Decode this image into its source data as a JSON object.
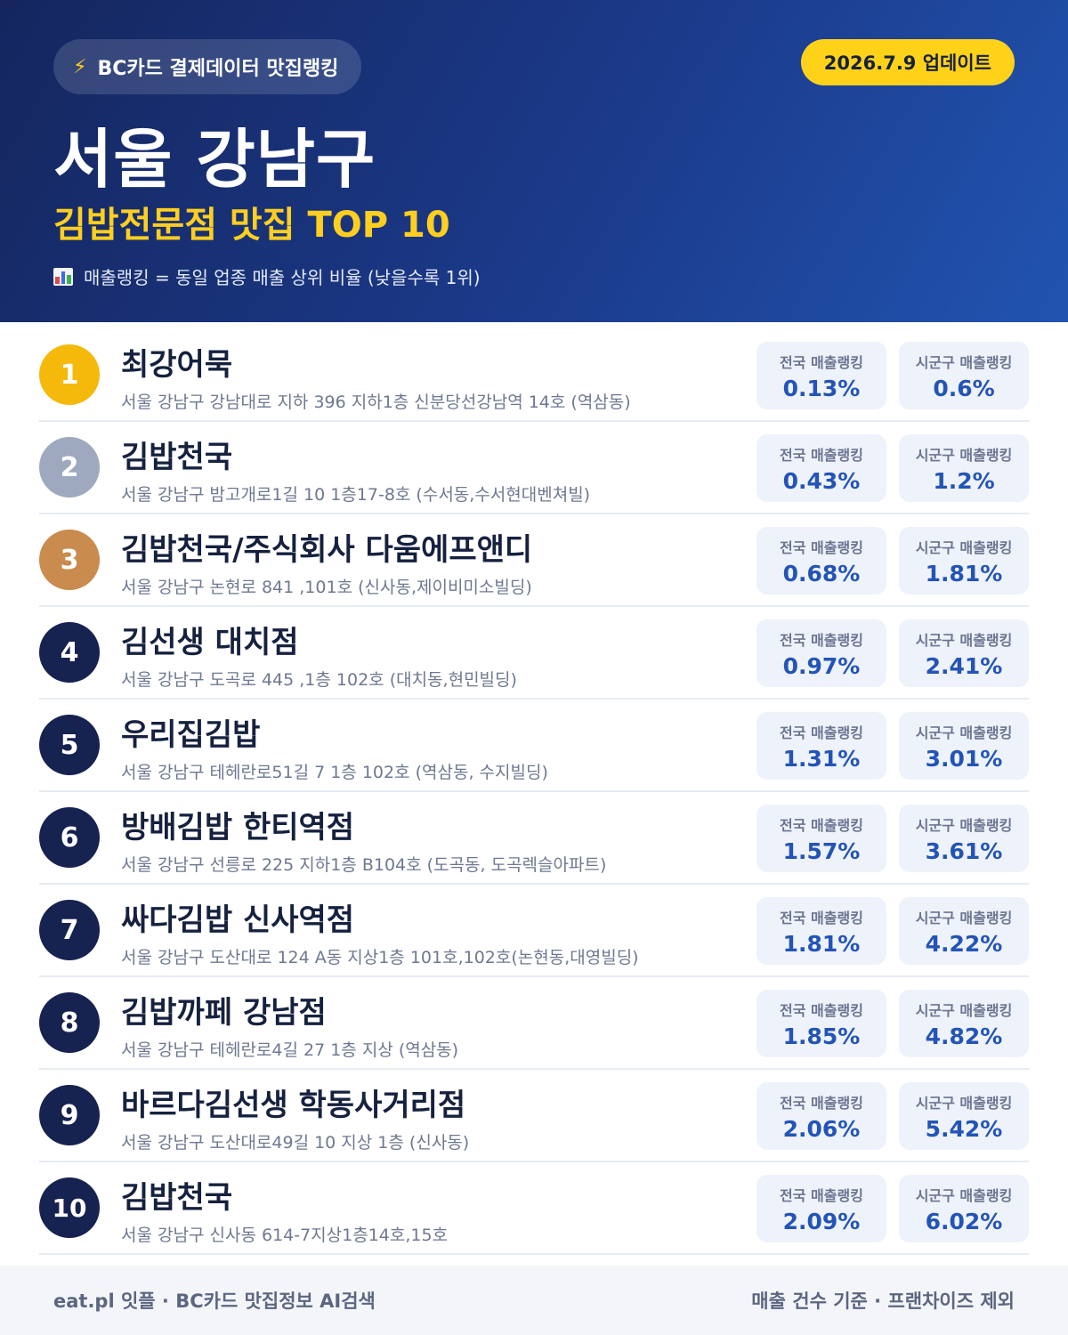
{
  "header": {
    "source_icon": "lightning-bolt-icon",
    "source_label": "BC카드 결제데이터 맛집랭킹",
    "update_label": "2026.7.9 업데이트",
    "title": "서울 강남구",
    "subtitle": "김밥전문점 맛집 TOP 10",
    "note_icon": "bar-chart-icon",
    "note": "매출랭킹 = 동일 업종 매출 상위 비율 (낮을수록 1위)"
  },
  "stat_labels": {
    "national": "전국 매출랭킹",
    "district": "시군구 매출랭킹"
  },
  "colors": {
    "gold": "#f4b90a",
    "silver": "#9ea9bf",
    "bronze": "#c98b4e",
    "navy": "#16224f",
    "accent_blue": "#2354b6",
    "accent_yellow": "#ffcf1f"
  },
  "restaurants": [
    {
      "rank": "1",
      "name": "최강어묵",
      "address": "서울 강남구 강남대로 지하 396 지하1층 신분당선강남역 14호 (역삼동)",
      "national": "0.13%",
      "district": "0.6%"
    },
    {
      "rank": "2",
      "name": "김밥천국",
      "address": "서울 강남구 밤고개로1길 10 1층17-8호 (수서동,수서현대벤쳐빌)",
      "national": "0.43%",
      "district": "1.2%"
    },
    {
      "rank": "3",
      "name": "김밥천국/주식회사 다움에프앤디",
      "address": "서울 강남구 논현로 841 ,101호 (신사동,제이비미소빌딩)",
      "national": "0.68%",
      "district": "1.81%"
    },
    {
      "rank": "4",
      "name": "김선생 대치점",
      "address": "서울 강남구 도곡로 445 ,1층 102호 (대치동,현민빌딩)",
      "national": "0.97%",
      "district": "2.41%"
    },
    {
      "rank": "5",
      "name": "우리집김밥",
      "address": "서울 강남구 테헤란로51길 7 1층 102호 (역삼동, 수지빌딩)",
      "national": "1.31%",
      "district": "3.01%"
    },
    {
      "rank": "6",
      "name": "방배김밥 한티역점",
      "address": "서울 강남구 선릉로 225 지하1층 B104호 (도곡동, 도곡렉슬아파트)",
      "national": "1.57%",
      "district": "3.61%"
    },
    {
      "rank": "7",
      "name": "싸다김밥 신사역점",
      "address": "서울 강남구 도산대로 124 A동 지상1층 101호,102호(논현동,대영빌딩)",
      "national": "1.81%",
      "district": "4.22%"
    },
    {
      "rank": "8",
      "name": "김밥까페 강남점",
      "address": "서울 강남구 테헤란로4길 27 1층 지상 (역삼동)",
      "national": "1.85%",
      "district": "4.82%"
    },
    {
      "rank": "9",
      "name": "바르다김선생 학동사거리점",
      "address": "서울 강남구 도산대로49길 10 지상 1층 (신사동)",
      "national": "2.06%",
      "district": "5.42%"
    },
    {
      "rank": "10",
      "name": "김밥천국",
      "address": "서울 강남구 신사동 614-7지상1층14호,15호",
      "national": "2.09%",
      "district": "6.02%"
    }
  ],
  "footer": {
    "left": "eat.pl 잇플 · BC카드 맛집정보 AI검색",
    "right": "매출 건수 기준 · 프랜차이즈 제외"
  }
}
